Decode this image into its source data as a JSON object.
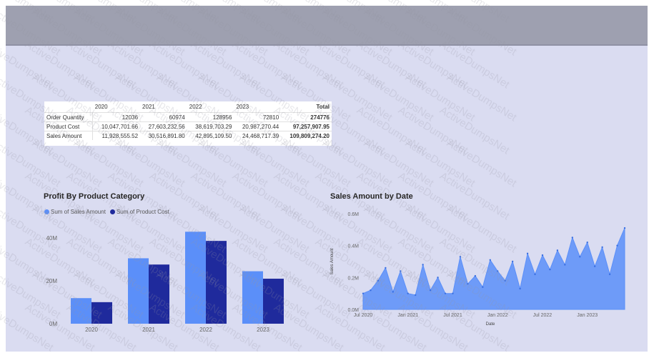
{
  "matrix": {
    "headers": [
      "",
      "2020",
      "2021",
      "2022",
      "2023",
      "Total"
    ],
    "rows": [
      {
        "label": "Order Quantity",
        "values": [
          "12036",
          "60974",
          "128956",
          "72810"
        ],
        "total": "274776"
      },
      {
        "label": "Product Cost",
        "values": [
          "10,047,701.66",
          "27,603,232.56",
          "38,619,703.29",
          "20,987,270.44"
        ],
        "total": "97,257,907.95"
      },
      {
        "label": "Sales Amount",
        "values": [
          "11,928,555.52",
          "30,516,891.80",
          "42,895,109.50",
          "24,468,717.39"
        ],
        "total": "109,809,274.20"
      }
    ]
  },
  "profit_chart": {
    "title": "Profit By Product Category",
    "legend": [
      {
        "label": "Sum of Sales Amount",
        "color": "#5b8ff9"
      },
      {
        "label": "Sum of Product Cost",
        "color": "#1f2a9c"
      }
    ]
  },
  "sales_chart": {
    "title": "Sales Amount by Date"
  },
  "watermark_text": "ActiveDumpsNet",
  "chart_data": [
    {
      "type": "bar",
      "title": "Profit By Product Category",
      "categories": [
        "2020",
        "2021",
        "2022",
        "2023"
      ],
      "series": [
        {
          "name": "Sum of Sales Amount",
          "color": "#5b8ff9",
          "values": [
            11.93,
            30.52,
            42.9,
            24.47
          ]
        },
        {
          "name": "Sum of Product Cost",
          "color": "#1f2a9c",
          "values": [
            10.05,
            27.6,
            38.62,
            20.99
          ]
        }
      ],
      "yticks": [
        "0M",
        "20M",
        "40M"
      ],
      "ylim": [
        0,
        45
      ],
      "legend": "top-left"
    },
    {
      "type": "area",
      "title": "Sales Amount by Date",
      "xlabel": "Date",
      "ylabel": "Sales Amount",
      "color": "#5b8ff9",
      "ylim": [
        0,
        0.6
      ],
      "yticks": [
        "0.0M",
        "0.2M",
        "0.4M",
        "0.6M"
      ],
      "xticks": [
        "Jul 2020",
        "Jan 2021",
        "Jul 2021",
        "Jan 2022",
        "Jul 2022",
        "Jan 2023"
      ],
      "x": [
        "2020-07",
        "2020-08",
        "2020-09",
        "2020-10",
        "2020-11",
        "2020-12",
        "2021-01",
        "2021-02",
        "2021-03",
        "2021-04",
        "2021-05",
        "2021-06",
        "2021-07",
        "2021-08",
        "2021-09",
        "2021-10",
        "2021-11",
        "2021-12",
        "2022-01",
        "2022-02",
        "2022-03",
        "2022-04",
        "2022-05",
        "2022-06",
        "2022-07",
        "2022-08",
        "2022-09",
        "2022-10",
        "2022-11",
        "2022-12",
        "2023-01",
        "2023-02",
        "2023-03",
        "2023-04",
        "2023-05",
        "2023-06"
      ],
      "values": [
        0.1,
        0.12,
        0.18,
        0.26,
        0.11,
        0.24,
        0.1,
        0.09,
        0.28,
        0.12,
        0.2,
        0.1,
        0.1,
        0.33,
        0.16,
        0.21,
        0.14,
        0.31,
        0.24,
        0.18,
        0.3,
        0.13,
        0.35,
        0.22,
        0.34,
        0.25,
        0.37,
        0.28,
        0.45,
        0.33,
        0.42,
        0.27,
        0.39,
        0.22,
        0.4,
        0.51
      ]
    }
  ]
}
